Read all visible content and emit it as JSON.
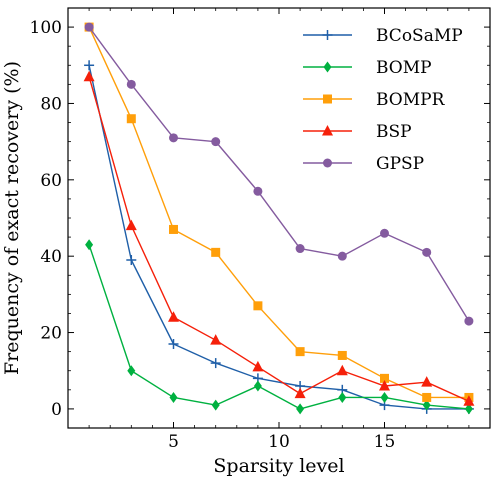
{
  "chart_data": {
    "type": "line",
    "xlabel": "Sparsity level",
    "ylabel": "Frequency of exact recovery (%)",
    "xlim": [
      0,
      20
    ],
    "ylim": [
      -5,
      105
    ],
    "x_ticks": [
      5,
      10,
      15
    ],
    "y_ticks": [
      0,
      20,
      40,
      60,
      80,
      100
    ],
    "grid": false,
    "legend_position": "top-right",
    "x": [
      1,
      3,
      5,
      7,
      9,
      11,
      13,
      15,
      17,
      19
    ],
    "series": [
      {
        "name": "BCoSaMP",
        "color": "#1f5fa8",
        "marker": "plus",
        "values": [
          90,
          39,
          17,
          12,
          8,
          6,
          5,
          1,
          0,
          0
        ]
      },
      {
        "name": "BOMP",
        "color": "#00b140",
        "marker": "diamond",
        "values": [
          43,
          10,
          3,
          1,
          6,
          0,
          3,
          3,
          1,
          0
        ]
      },
      {
        "name": "BOMPR",
        "color": "#ff9f0a",
        "marker": "square",
        "values": [
          100,
          76,
          47,
          41,
          27,
          15,
          14,
          8,
          3,
          3
        ]
      },
      {
        "name": "BSP",
        "color": "#f5200a",
        "marker": "triangle",
        "values": [
          87,
          48,
          24,
          18,
          11,
          4,
          10,
          6,
          7,
          2
        ]
      },
      {
        "name": "GPSP",
        "color": "#845b9f",
        "marker": "circle",
        "values": [
          100,
          85,
          71,
          70,
          57,
          42,
          40,
          46,
          41,
          23
        ]
      }
    ]
  }
}
